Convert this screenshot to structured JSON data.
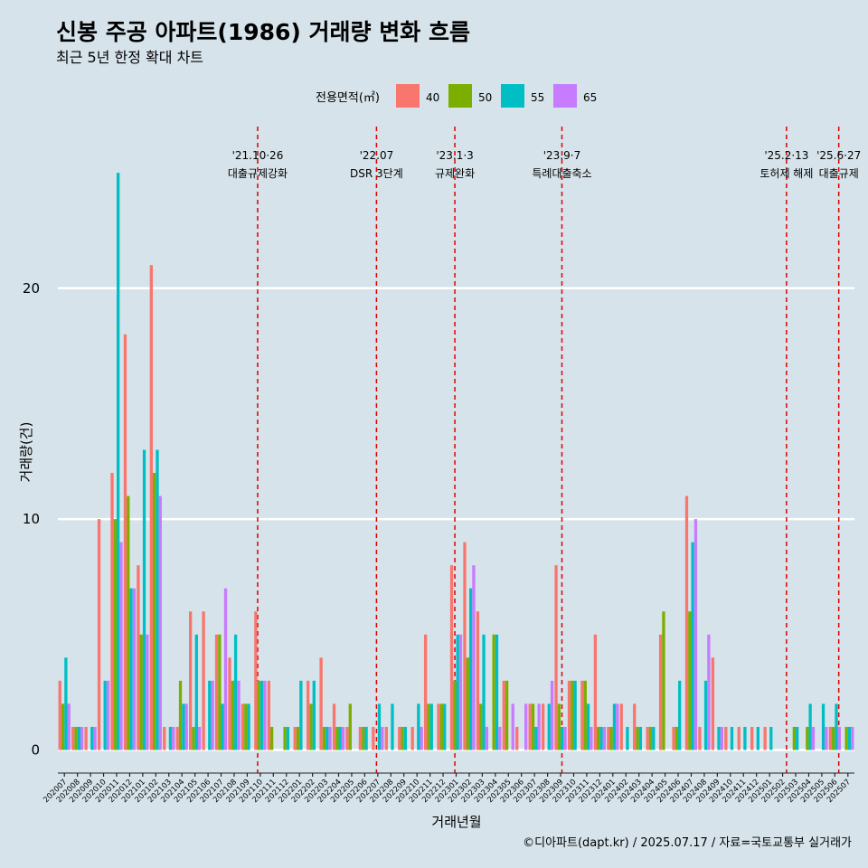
{
  "title": "신봉 주공 아파트(1986) 거래량 변화 흐름",
  "subtitle": "최근 5년 한정 확대 차트",
  "caption": "©디아파트(dapt.kr) / 2025.07.17 / 자료=국토교통부 실거래가",
  "legend": {
    "title": "전용면적(㎡)",
    "items": [
      {
        "label": "40",
        "color": "#F8766D"
      },
      {
        "label": "50",
        "color": "#7CAE00"
      },
      {
        "label": "55",
        "color": "#00BFC4"
      },
      {
        "label": "65",
        "color": "#C77CFF"
      }
    ]
  },
  "chart_data": {
    "type": "bar",
    "xlabel": "거래년월",
    "ylabel": "거래량(건)",
    "ylim": [
      -1,
      27
    ],
    "yticks": [
      0,
      10,
      20
    ],
    "categories": [
      "202007",
      "202008",
      "202009",
      "202010",
      "202011",
      "202012",
      "202101",
      "202102",
      "202103",
      "202104",
      "202105",
      "202106",
      "202107",
      "202108",
      "202109",
      "202110",
      "202111",
      "202112",
      "202201",
      "202202",
      "202203",
      "202204",
      "202205",
      "202206",
      "202207",
      "202208",
      "202209",
      "202210",
      "202211",
      "202212",
      "202301",
      "202302",
      "202303",
      "202304",
      "202305",
      "202306",
      "202307",
      "202308",
      "202309",
      "202310",
      "202311",
      "202312",
      "202401",
      "202402",
      "202403",
      "202404",
      "202405",
      "202406",
      "202407",
      "202408",
      "202409",
      "202410",
      "202411",
      "202412",
      "202501",
      "202502",
      "202503",
      "202504",
      "202505",
      "202506",
      "202507"
    ],
    "tick_labels": [
      "202007",
      "202008",
      "202009",
      "202010",
      "202011",
      "202012",
      "202101",
      "202102",
      "202103",
      "202104",
      "202105",
      "202106",
      "202107",
      "202108",
      "202109",
      "202110",
      "202111",
      "202112",
      "202201",
      "202202",
      "202203",
      "202204",
      "202205",
      "202206",
      "202207",
      "202208",
      "202209",
      "202210",
      "202211",
      "202212",
      "202301",
      "202302",
      "202303",
      "202304",
      "202305",
      "202306",
      "202307",
      "202308",
      "202309",
      "202310",
      "202311",
      "202312",
      "202401",
      "202402",
      "202403",
      "202404",
      "202405",
      "202406",
      "202407",
      "202408",
      "202409",
      "202410",
      "202411",
      "202412",
      "202501",
      "202502",
      "202503",
      "202504",
      "202505",
      "202506",
      "202507"
    ],
    "series": [
      {
        "name": "40",
        "color": "#F8766D",
        "values": [
          3,
          1,
          1,
          10,
          12,
          18,
          8,
          21,
          1,
          1,
          6,
          6,
          5,
          4,
          2,
          6,
          3,
          null,
          1,
          3,
          4,
          2,
          1,
          1,
          1,
          1,
          1,
          1,
          5,
          2,
          8,
          9,
          6,
          null,
          3,
          1,
          2,
          2,
          8,
          3,
          3,
          5,
          1,
          2,
          2,
          1,
          5,
          1,
          11,
          1,
          4,
          1,
          1,
          1,
          1,
          null,
          null,
          null,
          null,
          1,
          null
        ]
      },
      {
        "name": "50",
        "color": "#7CAE00",
        "values": [
          2,
          1,
          null,
          null,
          10,
          11,
          5,
          12,
          null,
          3,
          1,
          null,
          5,
          3,
          2,
          3,
          1,
          1,
          1,
          2,
          1,
          1,
          2,
          1,
          null,
          null,
          1,
          null,
          2,
          2,
          3,
          4,
          2,
          5,
          3,
          null,
          2,
          null,
          2,
          3,
          3,
          1,
          1,
          null,
          1,
          1,
          6,
          1,
          6,
          null,
          null,
          null,
          null,
          null,
          null,
          null,
          1,
          1,
          null,
          1,
          1
        ]
      },
      {
        "name": "55",
        "color": "#00BFC4",
        "values": [
          4,
          1,
          1,
          3,
          25,
          7,
          13,
          13,
          1,
          2,
          5,
          3,
          2,
          5,
          2,
          3,
          null,
          1,
          3,
          3,
          1,
          1,
          null,
          1,
          2,
          2,
          1,
          2,
          2,
          2,
          5,
          7,
          5,
          5,
          null,
          null,
          1,
          2,
          1,
          3,
          2,
          1,
          2,
          1,
          1,
          1,
          null,
          3,
          9,
          3,
          1,
          1,
          1,
          1,
          1,
          null,
          1,
          2,
          2,
          2,
          1
        ]
      },
      {
        "name": "65",
        "color": "#C77CFF",
        "values": [
          2,
          1,
          1,
          3,
          9,
          7,
          5,
          11,
          1,
          2,
          1,
          3,
          7,
          3,
          null,
          3,
          null,
          null,
          null,
          null,
          1,
          1,
          null,
          null,
          1,
          null,
          null,
          1,
          null,
          null,
          5,
          8,
          1,
          1,
          2,
          2,
          2,
          3,
          1,
          null,
          1,
          1,
          2,
          null,
          null,
          null,
          null,
          null,
          10,
          5,
          1,
          null,
          null,
          null,
          null,
          null,
          null,
          1,
          1,
          1,
          1
        ]
      }
    ],
    "events": [
      {
        "line1": "'21.10·26",
        "line2": "대출규제강화",
        "pos": 15.3
      },
      {
        "line1": "'22.07",
        "line2": "DSR 3단계",
        "pos": 24.4
      },
      {
        "line1": "'23.1·3",
        "line2": "규제완화",
        "pos": 30.4
      },
      {
        "line1": "'23.9·7",
        "line2": "특례대출축소",
        "pos": 38.6
      },
      {
        "line1": "'25.2·13",
        "line2": "토허제 해제",
        "pos": 55.8
      },
      {
        "line1": "'25.6·27",
        "line2": "대출규제",
        "pos": 59.8
      }
    ],
    "grid": true,
    "legend_position": "top"
  }
}
